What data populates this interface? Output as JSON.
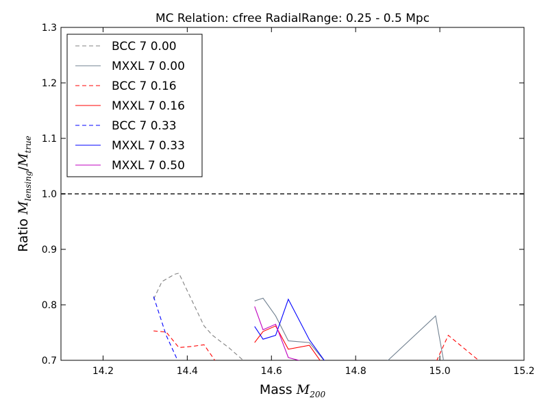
{
  "chart_data": {
    "type": "line",
    "title": "MC Relation: cfree RadialRange: 0.25 - 0.5 Mpc",
    "xlabel_prefix": "Mass",
    "xlabel_math": "M",
    "xlabel_sub": "200",
    "ylabel_prefix": "Ratio",
    "ylabel_math_num": "M",
    "ylabel_sub_num": "lensing",
    "ylabel_math_den": "M",
    "ylabel_sub_den": "true",
    "xlim": [
      14.1,
      15.2
    ],
    "ylim": [
      0.7,
      1.3
    ],
    "xticks": [
      {
        "value": 14.2,
        "label": "14.2"
      },
      {
        "value": 14.4,
        "label": "14.4"
      },
      {
        "value": 14.6,
        "label": "14.6"
      },
      {
        "value": 14.8,
        "label": "14.8"
      },
      {
        "value": 15.0,
        "label": "15.0"
      },
      {
        "value": 15.2,
        "label": "15.2"
      }
    ],
    "yticks": [
      {
        "value": 0.7,
        "label": "0.7"
      },
      {
        "value": 0.8,
        "label": "0.8"
      },
      {
        "value": 0.9,
        "label": "0.9"
      },
      {
        "value": 1.0,
        "label": "1.0"
      },
      {
        "value": 1.1,
        "label": "1.1"
      },
      {
        "value": 1.2,
        "label": "1.2"
      },
      {
        "value": 1.3,
        "label": "1.3"
      }
    ],
    "reference_line": {
      "y": 1.0,
      "color": "#555555",
      "dash": true
    },
    "legend_position": "top-left",
    "grid": false,
    "series": [
      {
        "name": "BCC 7 0.00",
        "color": "#808080",
        "dash": true,
        "points": [
          [
            14.32,
            0.81
          ],
          [
            14.34,
            0.842
          ],
          [
            14.37,
            0.855
          ],
          [
            14.38,
            0.857
          ],
          [
            14.44,
            0.762
          ],
          [
            14.46,
            0.745
          ],
          [
            14.5,
            0.722
          ],
          [
            14.53,
            0.702
          ],
          [
            14.54,
            0.695
          ]
        ]
      },
      {
        "name": "MXXL 7 0.00",
        "color": "#708090",
        "dash": false,
        "points": [
          [
            14.56,
            0.807
          ],
          [
            14.58,
            0.812
          ],
          [
            14.61,
            0.78
          ],
          [
            14.64,
            0.735
          ],
          [
            14.69,
            0.732
          ],
          [
            14.73,
            0.695
          ],
          [
            14.87,
            0.695
          ],
          [
            14.99,
            0.78
          ],
          [
            15.01,
            0.695
          ]
        ]
      },
      {
        "name": "BCC 7 0.16",
        "color": "#ff0000",
        "dash": true,
        "points": [
          [
            14.32,
            0.753
          ],
          [
            14.35,
            0.751
          ],
          [
            14.38,
            0.723
          ],
          [
            14.41,
            0.725
          ],
          [
            14.44,
            0.728
          ],
          [
            14.47,
            0.695
          ],
          [
            14.99,
            0.695
          ],
          [
            15.02,
            0.745
          ],
          [
            15.1,
            0.695
          ]
        ]
      },
      {
        "name": "MXXL 7 0.16",
        "color": "#ff0000",
        "dash": false,
        "points": [
          [
            14.56,
            0.732
          ],
          [
            14.58,
            0.752
          ],
          [
            14.61,
            0.762
          ],
          [
            14.64,
            0.72
          ],
          [
            14.69,
            0.727
          ],
          [
            14.72,
            0.695
          ]
        ]
      },
      {
        "name": "BCC 7 0.33",
        "color": "#0000ff",
        "dash": true,
        "points": [
          [
            14.32,
            0.815
          ],
          [
            14.35,
            0.745
          ],
          [
            14.38,
            0.695
          ]
        ]
      },
      {
        "name": "MXXL 7 0.33",
        "color": "#0000ff",
        "dash": false,
        "points": [
          [
            14.56,
            0.761
          ],
          [
            14.58,
            0.738
          ],
          [
            14.61,
            0.745
          ],
          [
            14.64,
            0.81
          ],
          [
            14.69,
            0.737
          ],
          [
            14.73,
            0.695
          ]
        ]
      },
      {
        "name": "MXXL 7 0.50",
        "color": "#bf00bf",
        "dash": false,
        "points": [
          [
            14.56,
            0.797
          ],
          [
            14.58,
            0.755
          ],
          [
            14.61,
            0.765
          ],
          [
            14.64,
            0.705
          ],
          [
            14.69,
            0.695
          ]
        ]
      }
    ]
  }
}
